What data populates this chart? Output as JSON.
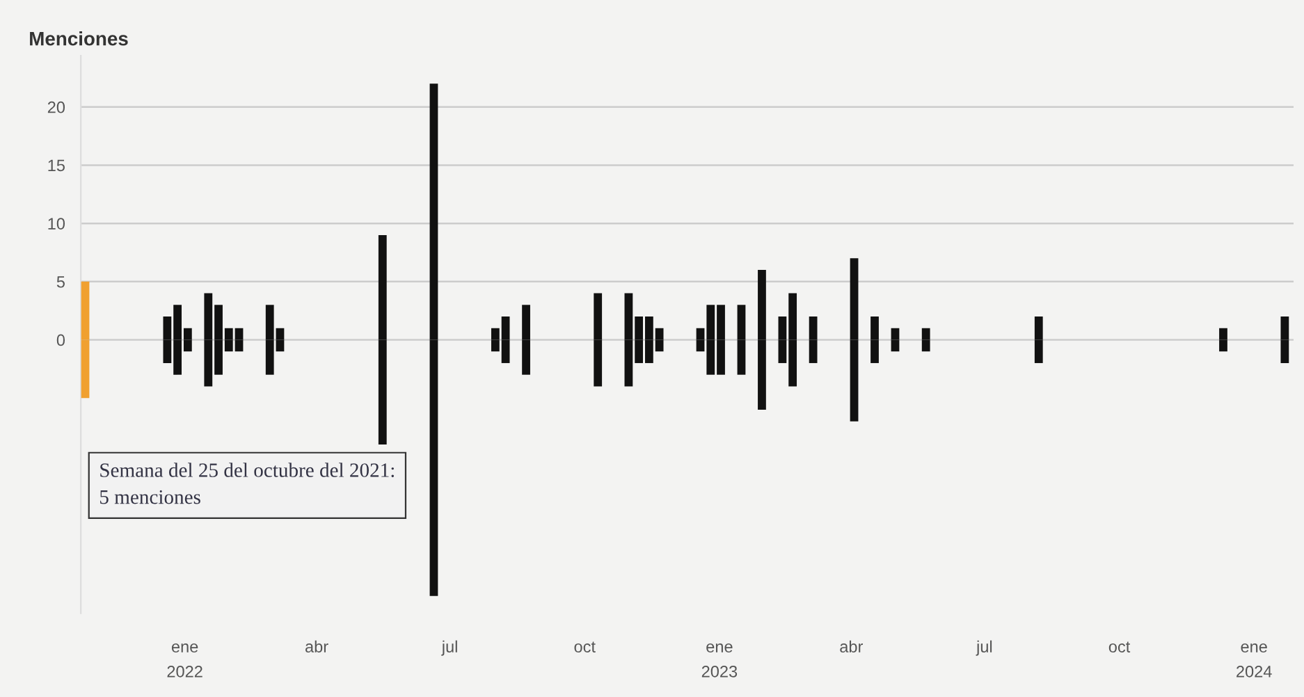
{
  "chart_data": {
    "type": "bar",
    "ylabel": "Menciones",
    "stacked": true,
    "x": [
      "2021-10-25",
      "2021-12-20",
      "2021-12-27",
      "2022-01-03",
      "2022-01-17",
      "2022-01-24",
      "2022-01-31",
      "2022-02-07",
      "2022-02-28",
      "2022-03-07",
      "2022-05-16",
      "2022-06-20",
      "2022-08-01",
      "2022-08-08",
      "2022-08-22",
      "2022-10-10",
      "2022-10-31",
      "2022-11-07",
      "2022-11-14",
      "2022-11-21",
      "2022-12-19",
      "2022-12-26",
      "2023-01-02",
      "2023-01-16",
      "2023-01-30",
      "2023-02-13",
      "2023-02-20",
      "2023-03-06",
      "2023-04-03",
      "2023-04-17",
      "2023-05-01",
      "2023-05-22",
      "2023-08-07",
      "2023-12-11",
      "2024-01-22"
    ],
    "series": [
      {
        "colors": [
          "#f0a030",
          "#111111",
          "#111111",
          "#111111",
          "#111111",
          "#111111",
          "#111111",
          "#111111",
          "#111111",
          "#111111",
          "#111111",
          "#111111",
          "#111111",
          "#111111",
          "#111111",
          "#111111",
          "#111111",
          "#111111",
          "#111111",
          "#111111",
          "#111111",
          "#111111",
          "#111111",
          "#111111",
          "#111111",
          "#111111",
          "#111111",
          "#111111",
          "#111111",
          "#111111",
          "#111111",
          "#111111",
          "#111111",
          "#111111",
          "#111111"
        ],
        "values": [
          5,
          2,
          3,
          1,
          4,
          3,
          1,
          1,
          3,
          1,
          9,
          22,
          1,
          2,
          3,
          4,
          4,
          2,
          2,
          1,
          1,
          3,
          3,
          3,
          6,
          2,
          4,
          2,
          7,
          2,
          1,
          1,
          2,
          1,
          2
        ]
      },
      {
        "colors": [
          "#f0a030",
          "#111111",
          "#111111",
          "#111111",
          "#111111",
          "#111111",
          "#111111",
          "#111111",
          "#111111",
          "#111111",
          "#111111",
          "#111111",
          "#111111",
          "#111111",
          "#111111",
          "#111111",
          "#111111",
          "#111111",
          "#111111",
          "#111111",
          "#111111",
          "#111111",
          "#111111",
          "#111111",
          "#111111",
          "#111111",
          "#111111",
          "#111111",
          "#111111",
          "#111111",
          "#111111",
          "#111111",
          "#111111",
          "#111111",
          "#111111"
        ],
        "values": [
          -5,
          -2,
          -3,
          -1,
          -4,
          -3,
          -1,
          -1,
          -3,
          -1,
          -9,
          -22,
          -1,
          -2,
          -3,
          -4,
          -4,
          -2,
          -2,
          -1,
          -1,
          -3,
          -3,
          -3,
          -6,
          -2,
          -4,
          -2,
          -7,
          -2,
          -1,
          -1,
          -2,
          -1,
          -2
        ]
      }
    ],
    "xlim": [
      "2021-10-22",
      "2024-01-28"
    ],
    "xticks": [
      {
        "value": "2022-01-01",
        "label": "ene\n2022"
      },
      {
        "value": "2022-04-01",
        "label": "abr"
      },
      {
        "value": "2022-07-01",
        "label": "jul"
      },
      {
        "value": "2022-10-01",
        "label": "oct"
      },
      {
        "value": "2023-01-01",
        "label": "ene\n2023"
      },
      {
        "value": "2023-04-01",
        "label": "abr"
      },
      {
        "value": "2023-07-01",
        "label": "jul"
      },
      {
        "value": "2023-10-01",
        "label": "oct"
      },
      {
        "value": "2024-01-01",
        "label": "ene\n2024"
      }
    ],
    "ylim": [
      -23.5,
      24.4
    ],
    "yticks": [
      0,
      5,
      10,
      15,
      20
    ],
    "grid": "y",
    "annotations": [
      "Semana del 25 del octubre del 2021:\n5 menciones"
    ]
  }
}
